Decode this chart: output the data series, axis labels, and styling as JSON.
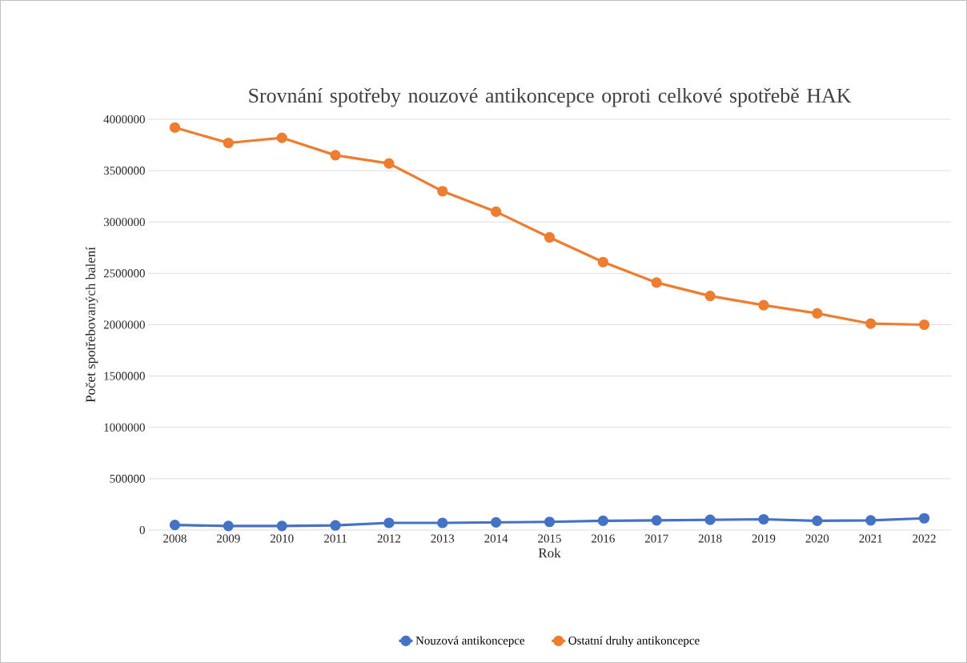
{
  "chart_data": {
    "type": "line",
    "title": "Srovnání spotřeby nouzové antikoncepce oproti celkové spotřebě HAK",
    "xlabel": "Rok",
    "ylabel": "Počet spotřebovaných balení",
    "categories": [
      "2008",
      "2009",
      "2010",
      "2011",
      "2012",
      "2013",
      "2014",
      "2015",
      "2016",
      "2017",
      "2018",
      "2019",
      "2020",
      "2021",
      "2022"
    ],
    "series": [
      {
        "name": "Nouzová antikoncepce",
        "color": "#4472c4",
        "values": [
          50000,
          40000,
          40000,
          45000,
          70000,
          70000,
          75000,
          80000,
          90000,
          95000,
          100000,
          105000,
          90000,
          95000,
          115000
        ]
      },
      {
        "name": "Ostatní druhy antikoncepce",
        "color": "#ed7d31",
        "values": [
          3920000,
          3770000,
          3820000,
          3650000,
          3570000,
          3300000,
          3100000,
          2850000,
          2610000,
          2410000,
          2280000,
          2190000,
          2110000,
          2010000,
          2000000
        ]
      }
    ],
    "ylim": [
      0,
      4000000
    ],
    "yticks": [
      0,
      500000,
      1000000,
      1500000,
      2000000,
      2500000,
      3000000,
      3500000,
      4000000
    ],
    "grid": "y",
    "legend": "bottom",
    "marker": "circle",
    "line_style": "solid"
  }
}
